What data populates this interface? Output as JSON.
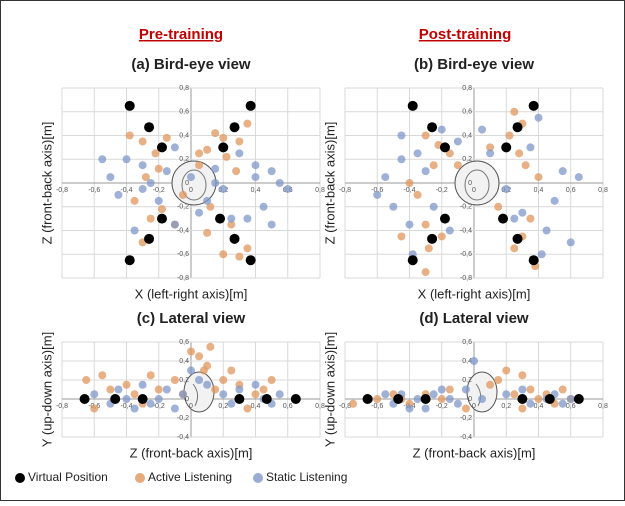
{
  "headers": [
    "Pre-training",
    "Post-training"
  ],
  "legend": [
    {
      "name": "Virtual Position",
      "color": "#000000"
    },
    {
      "name": "Active Listening",
      "color": "#e0955c"
    },
    {
      "name": "Static Listening",
      "color": "#7f97c8"
    }
  ],
  "chart_data": [
    {
      "type": "scatter",
      "title": "(a) Bird-eye view",
      "xlabel": "X (left-right axis)[m]",
      "ylabel": "Z (front-back axis)[m]",
      "xlim": [
        -0.8,
        0.8
      ],
      "ylim": [
        -0.8,
        0.8
      ],
      "grid": true,
      "xticks": [
        {
          "value": -0.8,
          "label": "-0,8"
        },
        {
          "value": -0.6,
          "label": "-0,6"
        },
        {
          "value": -0.4,
          "label": "-0,4"
        },
        {
          "value": -0.2,
          "label": "-0,2"
        },
        0,
        {
          "value": 0.2,
          "label": "0,2"
        },
        {
          "value": 0.4,
          "label": "0,4"
        },
        {
          "value": 0.6,
          "label": "0,6"
        },
        {
          "value": 0.8,
          "label": "0,8"
        }
      ],
      "yticks": [
        {
          "value": -0.8,
          "label": "-0,8"
        },
        {
          "value": -0.6,
          "label": "-0,6"
        },
        {
          "value": -0.4,
          "label": "-0,4"
        },
        {
          "value": -0.2,
          "label": "-0,2"
        },
        0,
        {
          "value": 0.2,
          "label": "0,2"
        },
        {
          "value": 0.4,
          "label": "0,4"
        },
        {
          "value": 0.6,
          "label": "0,6"
        },
        {
          "value": 0.8,
          "label": "0,8"
        }
      ],
      "series": [
        {
          "color": "#e0955c",
          "x": [
            -0.38,
            -0.3,
            -0.22,
            -0.15,
            -0.2,
            -0.28,
            -0.35,
            -0.25,
            -0.18,
            -0.1,
            0.05,
            0.1,
            0.15,
            0.2,
            0.3,
            0.35,
            0.28,
            0.22,
            0.12,
            0.18,
            0.25,
            0.35,
            0.1,
            0.05,
            -0.05,
            0.2,
            0.3,
            -0.3
          ],
          "values": [
            0.4,
            0.35,
            0.25,
            0.38,
            0.12,
            0.05,
            -0.15,
            -0.3,
            -0.22,
            -0.35,
            0.25,
            0.28,
            0.42,
            0.38,
            0.35,
            0.5,
            0.1,
            0.22,
            -0.2,
            -0.3,
            -0.35,
            -0.55,
            -0.42,
            0.15,
            -0.1,
            -0.6,
            -0.62,
            -0.5
          ]
        },
        {
          "color": "#7f97c8",
          "x": [
            -0.5,
            -0.45,
            -0.4,
            -0.35,
            -0.3,
            -0.25,
            -0.2,
            -0.15,
            -0.1,
            0.0,
            0.05,
            0.1,
            0.15,
            0.2,
            0.3,
            0.35,
            0.4,
            0.45,
            0.5,
            0.55,
            0.6,
            -0.55,
            -0.3,
            -0.1,
            0.25,
            0.4,
            0.5,
            0.15
          ],
          "values": [
            0.05,
            -0.1,
            0.2,
            -0.4,
            0.15,
            0.0,
            -0.15,
            0.1,
            0.3,
            0.05,
            -0.25,
            -0.15,
            0.0,
            -0.05,
            0.25,
            -0.3,
            0.05,
            -0.2,
            0.1,
            0.0,
            -0.05,
            0.2,
            -0.05,
            -0.35,
            -0.3,
            0.15,
            -0.35,
            0.12
          ]
        },
        {
          "color": "#000000",
          "x": [
            -0.38,
            0.37,
            -0.26,
            0.27,
            -0.18,
            0.2,
            -0.18,
            0.18,
            -0.26,
            0.27,
            -0.38,
            0.37
          ],
          "values": [
            0.65,
            0.65,
            0.47,
            0.47,
            0.3,
            0.3,
            -0.3,
            -0.3,
            -0.47,
            -0.47,
            -0.65,
            -0.65
          ]
        }
      ]
    },
    {
      "type": "scatter",
      "title": "(b) Bird-eye view",
      "xlabel": "X (left-right axis)[m]",
      "ylabel": "Z (front-back axis)[m]",
      "xlim": [
        -0.8,
        0.8
      ],
      "ylim": [
        -0.8,
        0.8
      ],
      "grid": true,
      "xticks": [
        {
          "value": -0.8,
          "label": "-0,8"
        },
        {
          "value": -0.6,
          "label": "-0,6"
        },
        {
          "value": -0.4,
          "label": "-0,4"
        },
        {
          "value": -0.2,
          "label": "-0,2"
        },
        0,
        {
          "value": 0.2,
          "label": "0,2"
        },
        {
          "value": 0.4,
          "label": "0,4"
        },
        {
          "value": 0.6,
          "label": "0,6"
        },
        {
          "value": 0.8,
          "label": "0,8"
        }
      ],
      "yticks": [
        {
          "value": -0.8,
          "label": "-0,8"
        },
        {
          "value": -0.6,
          "label": "-0,6"
        },
        {
          "value": -0.4,
          "label": "-0,4"
        },
        {
          "value": -0.2,
          "label": "-0,2"
        },
        0,
        {
          "value": 0.2,
          "label": "0,2"
        },
        {
          "value": 0.4,
          "label": "0,4"
        },
        {
          "value": 0.6,
          "label": "0,6"
        },
        {
          "value": 0.8,
          "label": "0,8"
        }
      ],
      "series": [
        {
          "color": "#e0955c",
          "x": [
            -0.3,
            -0.22,
            -0.15,
            -0.25,
            -0.35,
            -0.3,
            -0.2,
            -0.28,
            -0.3,
            0.25,
            0.3,
            0.22,
            0.28,
            0.32,
            0.4,
            0.35,
            0.3,
            0.38,
            0.25,
            0.15,
            0.1,
            -0.1,
            -0.4,
            -0.45
          ],
          "values": [
            0.4,
            0.32,
            0.25,
            0.15,
            -0.1,
            -0.35,
            -0.45,
            -0.55,
            -0.75,
            0.6,
            0.5,
            0.4,
            0.25,
            0.15,
            0.05,
            -0.3,
            -0.45,
            -0.7,
            -0.55,
            -0.2,
            0.3,
            0.15,
            0.0,
            -0.45
          ]
        },
        {
          "color": "#7f97c8",
          "x": [
            -0.6,
            -0.55,
            -0.5,
            -0.45,
            -0.4,
            -0.35,
            -0.3,
            -0.25,
            -0.2,
            -0.15,
            -0.1,
            0.05,
            0.1,
            0.2,
            0.25,
            0.35,
            0.4,
            0.45,
            0.5,
            0.55,
            0.6,
            0.65,
            -0.38,
            0.42,
            -0.45,
            0.3
          ],
          "values": [
            -0.1,
            0.05,
            -0.2,
            0.4,
            -0.35,
            0.25,
            0.1,
            -0.2,
            0.45,
            -0.4,
            0.35,
            0.45,
            0.25,
            -0.05,
            -0.3,
            0.3,
            0.55,
            -0.4,
            -0.15,
            0.1,
            -0.5,
            0.05,
            -0.6,
            -0.6,
            0.2,
            -0.25
          ]
        },
        {
          "color": "#000000",
          "x": [
            -0.38,
            0.37,
            -0.26,
            0.27,
            -0.18,
            0.2,
            -0.18,
            0.18,
            -0.26,
            0.27,
            -0.38,
            0.37
          ],
          "values": [
            0.65,
            0.65,
            0.47,
            0.47,
            0.3,
            0.3,
            -0.3,
            -0.3,
            -0.47,
            -0.47,
            -0.65,
            -0.65
          ]
        }
      ]
    },
    {
      "type": "scatter",
      "title": "(c) Lateral view",
      "xlabel": "Z (front-back axis)[m]",
      "ylabel": "Y (up-down axis)[m]",
      "xlim": [
        -0.8,
        0.8
      ],
      "ylim": [
        -0.4,
        0.6
      ],
      "grid": true,
      "xticks": [
        {
          "value": -0.8,
          "label": "-0,8"
        },
        {
          "value": -0.6,
          "label": "-0,6"
        },
        {
          "value": -0.4,
          "label": "-0,4"
        },
        {
          "value": -0.2,
          "label": "-0,2"
        },
        0,
        {
          "value": 0.2,
          "label": "0,2"
        },
        {
          "value": 0.4,
          "label": "0,4"
        },
        {
          "value": 0.6,
          "label": "0,6"
        },
        {
          "value": 0.8,
          "label": "0,8"
        }
      ],
      "yticks": [
        {
          "value": -0.4,
          "label": "-0,4"
        },
        {
          "value": -0.2,
          "label": "-0,2"
        },
        0,
        {
          "value": 0.2,
          "label": "0,2"
        },
        {
          "value": 0.4,
          "label": "0,4"
        },
        {
          "value": 0.6,
          "label": "0,6"
        }
      ],
      "series": [
        {
          "color": "#e0955c",
          "x": [
            -0.65,
            -0.55,
            -0.5,
            -0.4,
            -0.35,
            -0.25,
            -0.2,
            -0.1,
            -0.05,
            0.0,
            0.05,
            0.1,
            0.15,
            0.2,
            0.3,
            0.35,
            0.4,
            0.45,
            0.5,
            -0.3,
            -0.6,
            0.12,
            0.08,
            0.25
          ],
          "values": [
            0.2,
            0.25,
            0.1,
            0.15,
            0.05,
            0.25,
            0.1,
            0.2,
            0.05,
            0.5,
            0.45,
            0.35,
            0.1,
            0.2,
            0.15,
            -0.1,
            0.05,
            0.1,
            0.2,
            -0.05,
            -0.1,
            0.55,
            0.3,
            0.3
          ]
        },
        {
          "color": "#7f97c8",
          "x": [
            -0.6,
            -0.5,
            -0.45,
            -0.4,
            -0.3,
            -0.25,
            -0.2,
            -0.15,
            -0.1,
            -0.05,
            0.0,
            0.1,
            0.2,
            0.25,
            0.3,
            0.4,
            0.45,
            0.5,
            0.55,
            -0.35,
            0.05
          ],
          "values": [
            0.05,
            -0.05,
            0.1,
            0.0,
            0.15,
            -0.05,
            0.0,
            0.1,
            -0.1,
            0.05,
            0.3,
            0.15,
            0.05,
            -0.05,
            0.1,
            0.15,
            0.0,
            -0.05,
            0.05,
            -0.1,
            0.2
          ]
        },
        {
          "color": "#000000",
          "x": [
            -0.66,
            -0.47,
            -0.3,
            0.3,
            0.47,
            0.65
          ],
          "values": [
            0,
            0,
            0,
            0,
            0,
            0
          ]
        }
      ]
    },
    {
      "type": "scatter",
      "title": "(d) Lateral view",
      "xlabel": "Z (front-back axis)[m]",
      "ylabel": "Y (up-down axis)[m]",
      "xlim": [
        -0.8,
        0.8
      ],
      "ylim": [
        -0.4,
        0.6
      ],
      "grid": true,
      "xticks": [
        {
          "value": -0.8,
          "label": "-0,8"
        },
        {
          "value": -0.6,
          "label": "-0,6"
        },
        {
          "value": -0.4,
          "label": "-0,4"
        },
        {
          "value": -0.2,
          "label": "-0,2"
        },
        0,
        {
          "value": 0.2,
          "label": "0,2"
        },
        {
          "value": 0.4,
          "label": "0,4"
        },
        {
          "value": 0.6,
          "label": "0,6"
        },
        {
          "value": 0.8,
          "label": "0,8"
        }
      ],
      "yticks": [
        {
          "value": -0.4,
          "label": "-0,4"
        },
        {
          "value": -0.2,
          "label": "-0,2"
        },
        0,
        {
          "value": 0.2,
          "label": "0,2"
        },
        {
          "value": 0.4,
          "label": "0,4"
        },
        {
          "value": 0.6,
          "label": "0,6"
        }
      ],
      "series": [
        {
          "color": "#e0955c",
          "x": [
            -0.75,
            -0.6,
            -0.5,
            -0.4,
            -0.3,
            -0.2,
            -0.15,
            -0.05,
            0.15,
            0.2,
            0.25,
            0.3,
            0.35,
            0.4,
            0.45,
            0.5,
            0.55,
            0.6,
            -0.45,
            0.1,
            0.3
          ],
          "values": [
            -0.05,
            0.0,
            0.05,
            -0.05,
            0.05,
            0.0,
            0.1,
            -0.1,
            0.2,
            0.3,
            0.05,
            -0.1,
            0.1,
            0.0,
            0.05,
            -0.05,
            0.1,
            0.0,
            0.0,
            0.15,
            0.25
          ]
        },
        {
          "color": "#7f97c8",
          "x": [
            -0.65,
            -0.55,
            -0.5,
            -0.45,
            -0.35,
            -0.3,
            -0.25,
            -0.2,
            -0.1,
            -0.05,
            0.0,
            0.05,
            0.2,
            0.3,
            0.35,
            0.45,
            0.5,
            0.55,
            0.6,
            -0.15,
            -0.4
          ],
          "values": [
            0.0,
            0.05,
            -0.05,
            0.05,
            0.0,
            -0.1,
            0.05,
            0.1,
            -0.05,
            0.1,
            0.4,
            0.0,
            0.05,
            0.1,
            -0.05,
            0.0,
            0.05,
            -0.05,
            0.0,
            0.0,
            -0.1
          ]
        },
        {
          "color": "#000000",
          "x": [
            -0.66,
            -0.47,
            -0.3,
            0.3,
            0.47,
            0.65
          ],
          "values": [
            0,
            0,
            0,
            0,
            0,
            0
          ]
        }
      ]
    }
  ]
}
